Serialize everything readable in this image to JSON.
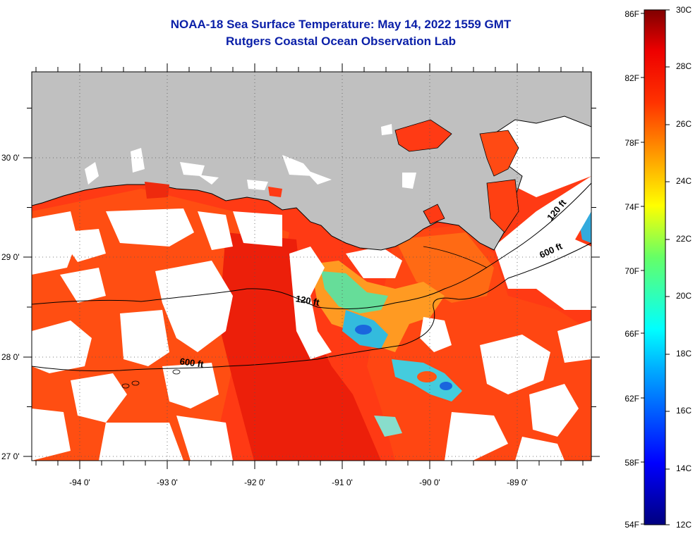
{
  "title": {
    "line1": "NOAA-18 Sea Surface Temperature:  May 14, 2022 1559 GMT",
    "line2": "Rutgers Coastal Ocean Observation Lab"
  },
  "map": {
    "longitude_labels": [
      "-94 0'",
      "-93 0'",
      "-92 0'",
      "-91 0'",
      "-90 0'",
      "-89 0'"
    ],
    "latitude_labels": [
      "30 0'",
      "29 0'",
      "28 0'",
      "27 0'"
    ],
    "contour_labels": {
      "east_120": "120 ft",
      "east_600": "600 ft",
      "mid_120": "120 ft",
      "west_600": "600 ft"
    }
  },
  "colorbar": {
    "fahrenheit_labels": [
      "86F",
      "82F",
      "78F",
      "74F",
      "70F",
      "66F",
      "62F",
      "58F",
      "54F"
    ],
    "celsius_labels": [
      "30C",
      "28C",
      "26C",
      "24C",
      "22C",
      "20C",
      "18C",
      "16C",
      "14C",
      "12C"
    ],
    "range_celsius": [
      12,
      30
    ]
  },
  "colors": {
    "title": "#0a1fa8",
    "land": "#c0c0c0",
    "cloud": "#ffffff",
    "warm_water": "#ff3311",
    "warm_water_dark": "#e81e0a",
    "orange_water": "#ff6a10",
    "cool_water": "#44ccdd",
    "cold_water": "#1a66dd"
  }
}
